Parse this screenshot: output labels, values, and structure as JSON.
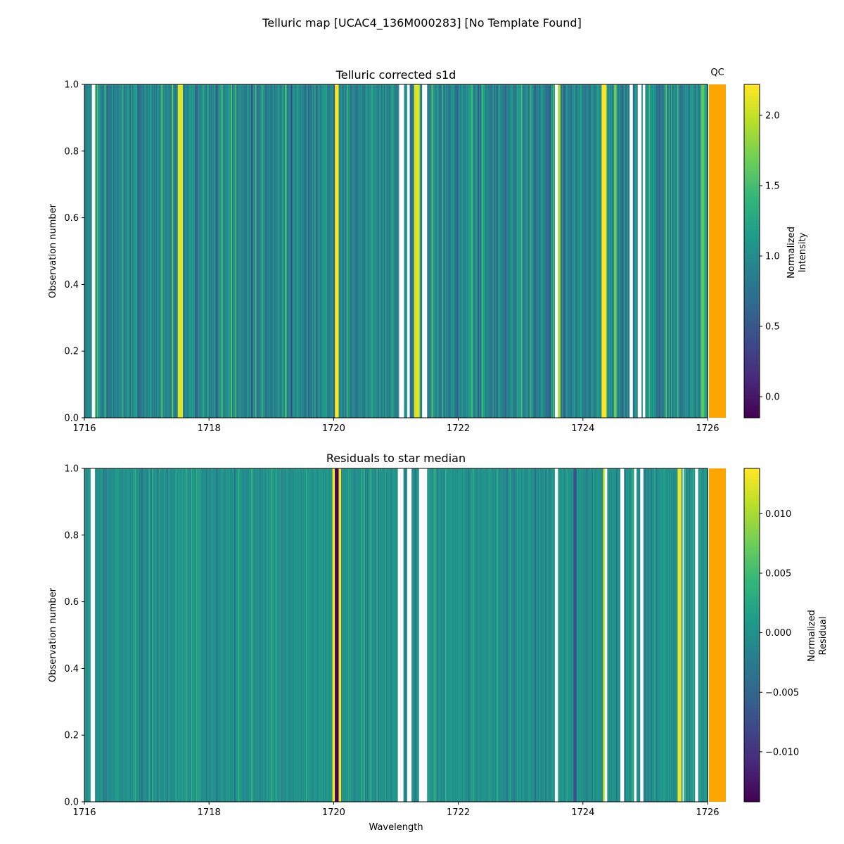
{
  "figure": {
    "title": "Telluric map [UCAC4_136M000283] [No Template Found]",
    "qc_label": "QC",
    "qc_color": "#ffa500",
    "gap_color": "#ffffff"
  },
  "colormap": {
    "name": "viridis",
    "stops": [
      "#440154",
      "#482878",
      "#3e4989",
      "#31688e",
      "#26828e",
      "#1f9e89",
      "#35b779",
      "#6ece58",
      "#b5de2b",
      "#fde725"
    ]
  },
  "chart_data": [
    {
      "type": "heatmap",
      "title": "Telluric corrected s1d",
      "xlabel": "",
      "ylabel": "Observation number",
      "xlim": [
        1716,
        1726
      ],
      "ylim": [
        0,
        1
      ],
      "xticks": [
        1716,
        1718,
        1720,
        1722,
        1724,
        1726
      ],
      "yticks": [
        0.0,
        0.2,
        0.4,
        0.6,
        0.8,
        1.0
      ],
      "colorbar": {
        "label": [
          "Normalized",
          "Intensity"
        ],
        "range": [
          -0.15,
          2.22
        ],
        "ticks": [
          0.0,
          0.5,
          1.0,
          1.5,
          2.0
        ]
      },
      "typical_value": 0.95,
      "bright_bands": [
        [
          1717.5,
          1717.58,
          2.1
        ],
        [
          1720.02,
          1720.08,
          2.2
        ],
        [
          1721.29,
          1721.38,
          2.1
        ],
        [
          1723.6,
          1723.64,
          1.9
        ],
        [
          1724.3,
          1724.38,
          2.2
        ],
        [
          1724.5,
          1724.54,
          1.7
        ],
        [
          1725.9,
          1725.95,
          1.6
        ]
      ],
      "gaps": [
        [
          1716.12,
          1716.17
        ],
        [
          1721.05,
          1721.13
        ],
        [
          1721.18,
          1721.22
        ],
        [
          1721.42,
          1721.5
        ],
        [
          1723.55,
          1723.6
        ],
        [
          1724.75,
          1724.8
        ],
        [
          1724.88,
          1724.94
        ],
        [
          1724.96,
          1725.0
        ]
      ]
    },
    {
      "type": "heatmap",
      "title": "Residuals to star median",
      "xlabel": "Wavelength",
      "ylabel": "Observation number",
      "xlim": [
        1716,
        1726
      ],
      "ylim": [
        0,
        1
      ],
      "xticks": [
        1716,
        1718,
        1720,
        1722,
        1724,
        1726
      ],
      "yticks": [
        0.0,
        0.2,
        0.4,
        0.6,
        0.8,
        1.0
      ],
      "colorbar": {
        "label": [
          "Normalized",
          "Residual"
        ],
        "range": [
          -0.0142,
          0.0138
        ],
        "ticks": [
          -0.01,
          -0.005,
          0.0,
          0.005,
          0.01
        ],
        "tick_labels": [
          "−0.010",
          "−0.005",
          "0.000",
          "0.005",
          "0.010"
        ]
      },
      "typical_value": 0.0,
      "bright_bands": [
        [
          1719.98,
          1720.02,
          0.0135
        ],
        [
          1720.08,
          1720.12,
          0.0135
        ],
        [
          1725.52,
          1725.58,
          0.0132
        ],
        [
          1724.32,
          1724.36,
          0.011
        ]
      ],
      "dark_bands": [
        [
          1720.02,
          1720.08,
          -0.0142
        ],
        [
          1723.85,
          1723.9,
          -0.007
        ]
      ],
      "gaps": [
        [
          1716.1,
          1716.17
        ],
        [
          1721.03,
          1721.12
        ],
        [
          1721.18,
          1721.25
        ],
        [
          1721.37,
          1721.5
        ],
        [
          1723.55,
          1723.6
        ],
        [
          1724.35,
          1724.39
        ],
        [
          1724.6,
          1724.66
        ],
        [
          1724.82,
          1724.86
        ],
        [
          1724.92,
          1724.97
        ],
        [
          1725.6,
          1725.62
        ],
        [
          1725.8,
          1725.85
        ]
      ]
    }
  ]
}
